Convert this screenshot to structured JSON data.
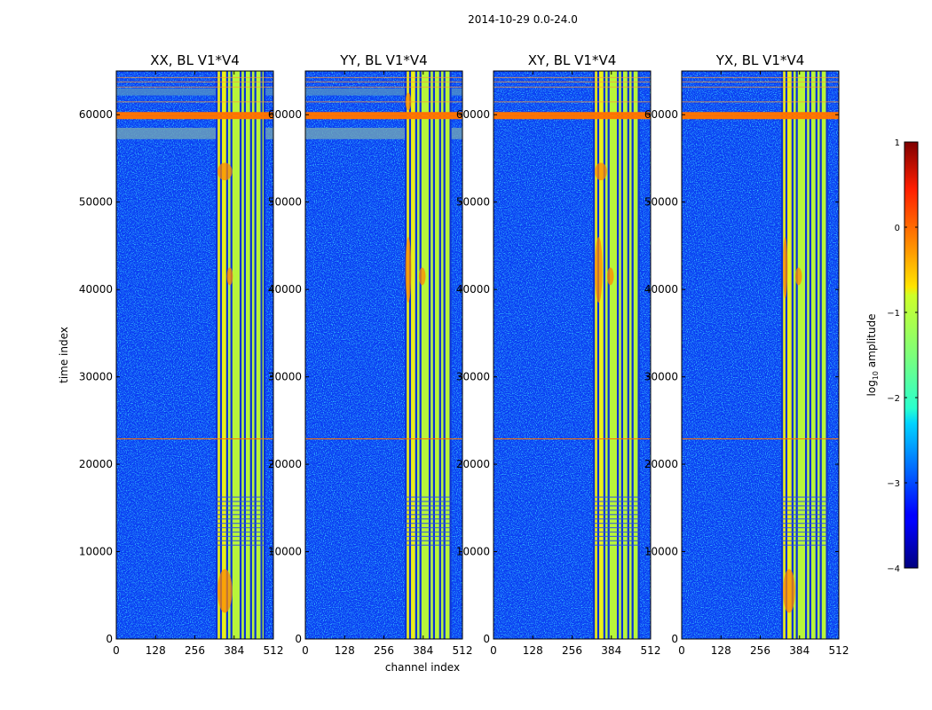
{
  "chart_data": {
    "type": "heatmap",
    "title": "2014-10-29 0.0-24.0",
    "xlabel": "channel index",
    "ylabel": "time index",
    "xlim": [
      0,
      512
    ],
    "ylim": [
      0,
      65000
    ],
    "x_ticks": [
      0,
      128,
      256,
      384,
      512
    ],
    "y_ticks": [
      0,
      10000,
      20000,
      30000,
      40000,
      50000,
      60000
    ],
    "panels": [
      {
        "title": "XX, BL V1*V4",
        "band_start": 324,
        "band_end": 482,
        "hot_regions": [
          [
            330,
            52500,
            378,
            54500
          ],
          [
            330,
            3000,
            378,
            8000
          ],
          [
            360,
            40500,
            380,
            42500
          ]
        ],
        "gray_band": true
      },
      {
        "title": "YY, BL V1*V4",
        "band_start": 324,
        "band_end": 476,
        "hot_regions": [
          [
            326,
            38500,
            345,
            46000
          ],
          [
            370,
            40500,
            392,
            42500
          ],
          [
            326,
            60500,
            345,
            62500
          ]
        ],
        "gray_band": true
      },
      {
        "title": "XY, BL V1*V4",
        "band_start": 324,
        "band_end": 476,
        "hot_regions": [
          [
            330,
            52500,
            370,
            54500
          ],
          [
            370,
            40500,
            392,
            42500
          ],
          [
            330,
            38500,
            355,
            46000
          ]
        ],
        "gray_band": false
      },
      {
        "title": "YX, BL V1*V4",
        "band_start": 324,
        "band_end": 476,
        "hot_regions": [
          [
            330,
            3000,
            370,
            8000
          ],
          [
            370,
            40500,
            392,
            42500
          ],
          [
            330,
            39000,
            345,
            46000
          ]
        ],
        "gray_band": false
      }
    ],
    "flagged_rows": [
      22900,
      59700,
      60100
    ],
    "colorbar": {
      "label": "log",
      "label_sub": "10",
      "label_suffix": " amplitude",
      "range": [
        -4,
        1
      ],
      "ticks": [
        -4,
        -3,
        -2,
        -1,
        0,
        1
      ],
      "tick_labels": [
        "−4",
        "−3",
        "−2",
        "−1",
        "0",
        "1"
      ],
      "colormap": "jet"
    }
  }
}
